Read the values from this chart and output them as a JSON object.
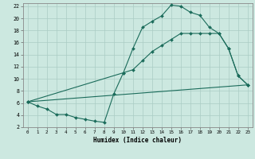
{
  "xlabel": "Humidex (Indice chaleur)",
  "bg_color": "#cce8e0",
  "grid_color": "#aaccc4",
  "line_color": "#1a6b5a",
  "xlim": [
    -0.5,
    23.5
  ],
  "ylim": [
    2,
    22.5
  ],
  "xticks": [
    0,
    1,
    2,
    3,
    4,
    5,
    6,
    7,
    8,
    9,
    10,
    11,
    12,
    13,
    14,
    15,
    16,
    17,
    18,
    19,
    20,
    21,
    22,
    23
  ],
  "yticks": [
    2,
    4,
    6,
    8,
    10,
    12,
    14,
    16,
    18,
    20,
    22
  ],
  "line1_x": [
    0,
    1,
    2,
    3,
    4,
    5,
    6,
    7,
    8,
    9,
    10,
    11,
    12,
    13,
    14,
    15,
    16,
    17,
    18,
    19,
    20,
    21,
    22,
    23
  ],
  "line1_y": [
    6.2,
    5.5,
    5.0,
    4.1,
    4.1,
    3.6,
    3.3,
    3.0,
    2.8,
    7.5,
    11.0,
    15.0,
    18.5,
    19.5,
    20.4,
    22.2,
    22.0,
    21.0,
    20.5,
    18.5,
    17.5,
    15.0,
    10.5,
    9.0
  ],
  "line2_x": [
    0,
    10,
    11,
    12,
    13,
    14,
    15,
    16,
    17,
    18,
    19,
    20,
    21,
    22,
    23
  ],
  "line2_y": [
    6.2,
    11.0,
    11.5,
    13.0,
    14.5,
    15.5,
    16.5,
    17.5,
    17.5,
    17.5,
    17.5,
    17.5,
    15.0,
    10.5,
    9.0
  ],
  "line3_x": [
    0,
    23
  ],
  "line3_y": [
    6.2,
    9.0
  ]
}
